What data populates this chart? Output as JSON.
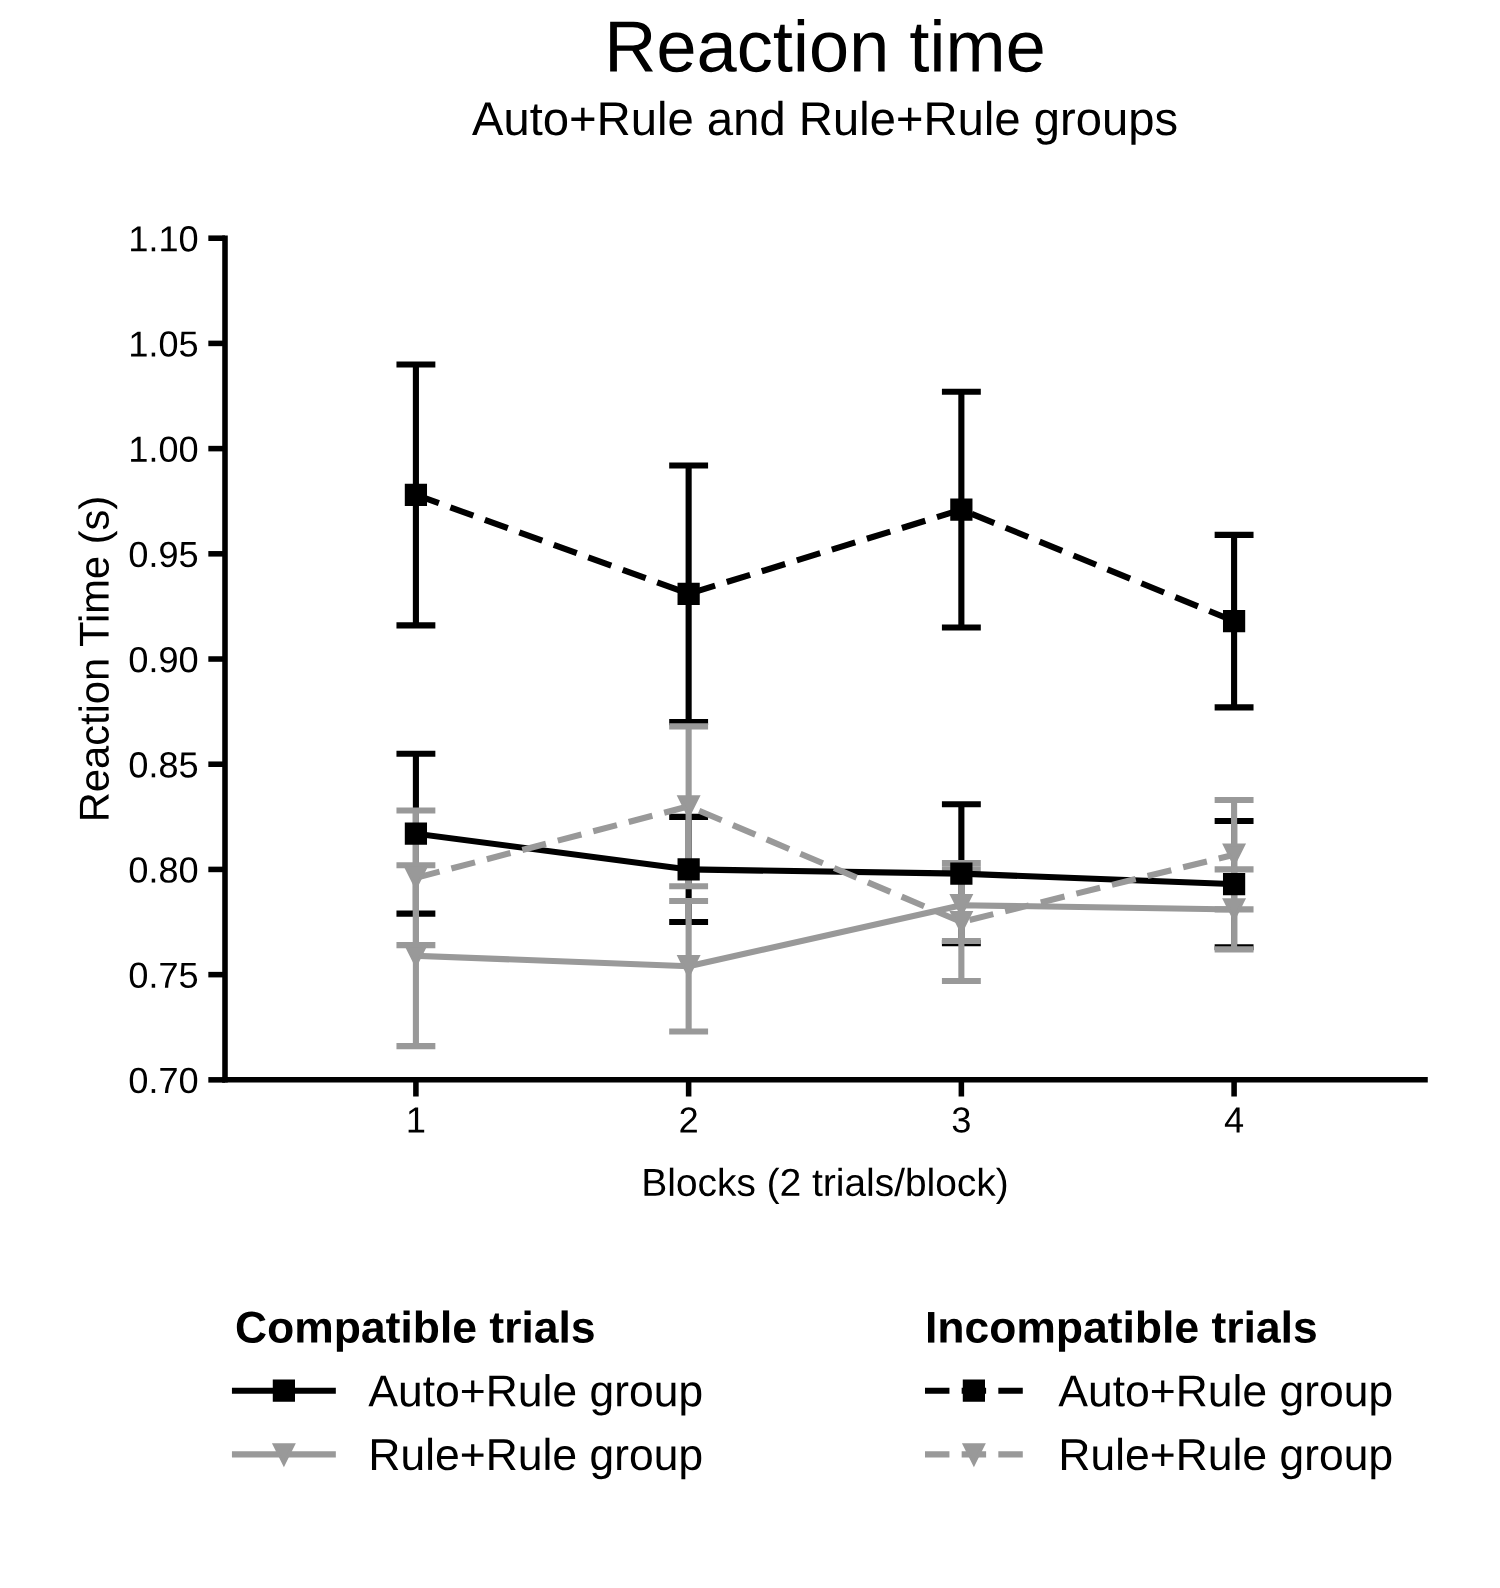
{
  "chart_data": {
    "type": "line",
    "title": "Reaction time",
    "subtitle": "Auto+Rule and Rule+Rule groups",
    "xlabel": "Blocks (2 trials/block)",
    "ylabel": "Reaction Time (s)",
    "x": [
      1,
      2,
      3,
      4
    ],
    "xlim": [
      0.3,
      4.7
    ],
    "xticks": [
      1,
      2,
      3,
      4
    ],
    "ylim": [
      0.7,
      1.1
    ],
    "yticks": [
      {
        "value": 0.7,
        "label": "0.70"
      },
      0.75,
      {
        "value": 0.8,
        "label": "0.80"
      },
      0.85,
      {
        "value": 0.9,
        "label": "0.90"
      },
      0.95,
      {
        "value": 1.0,
        "label": "1.00"
      },
      1.05,
      {
        "value": 1.1,
        "label": "1.10"
      }
    ],
    "grid": false,
    "legend": "bottom",
    "annotations": [
      "Compatible trials",
      "Incompatible trials"
    ],
    "series": [
      {
        "name": "Auto+Rule group",
        "color": "#000000",
        "marker": "square",
        "line_style": "solid",
        "values": [
          0.817,
          0.8,
          0.798,
          0.793
        ],
        "errors": [
          0.038,
          0.025,
          0.033,
          0.03
        ]
      },
      {
        "name": "Rule+Rule group",
        "color": "#999999",
        "marker": "triangle",
        "line_style": "solid",
        "values": [
          0.759,
          0.754,
          0.783,
          0.781
        ],
        "errors": [
          0.043,
          0.031,
          0.017,
          0.019
        ]
      },
      {
        "name": "Auto+Rule group",
        "color": "#000000",
        "marker": "square",
        "line_style": "dashed",
        "values": [
          0.978,
          0.931,
          0.971,
          0.918
        ],
        "errors": [
          0.062,
          0.061,
          0.056,
          0.041
        ]
      },
      {
        "name": "Rule+Rule group",
        "color": "#999999",
        "marker": "triangle",
        "line_style": "dashed",
        "values": [
          0.796,
          0.83,
          0.775,
          0.807
        ],
        "errors": [
          0.032,
          0.038,
          0.028,
          0.026
        ]
      }
    ]
  }
}
